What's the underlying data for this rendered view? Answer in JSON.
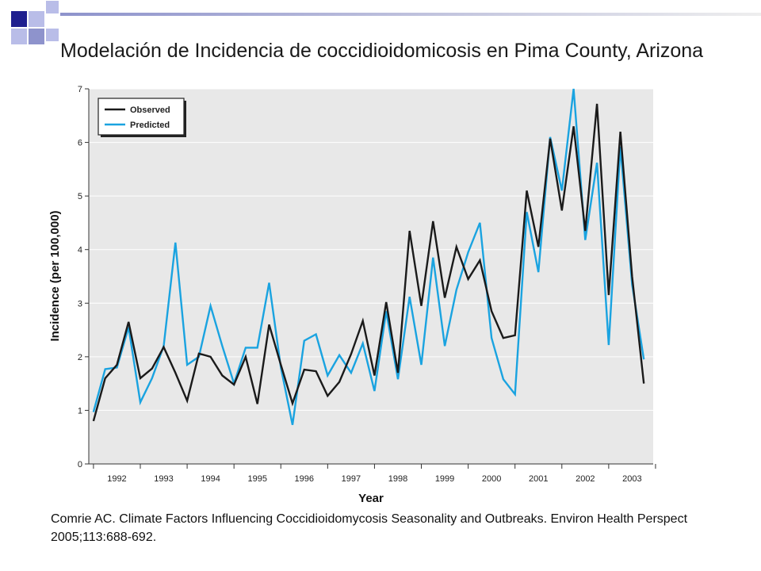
{
  "slide": {
    "title": "Modelación de Incidencia de coccidioidomicosis en Pima County, Arizona",
    "citation": "Comrie AC. Climate Factors Influencing Coccidioidomycosis Seasonality and Outbreaks. Environ Health Perspect 2005;113:688-692."
  },
  "colors": {
    "deco_navy": "#1f1f8f",
    "deco_light": "#b9bde8",
    "deco_mid": "#8e93cc",
    "plot_bg": "#e8e8e8",
    "observed": "#1a1a1a",
    "predicted": "#1aa3e0"
  },
  "chart_data": {
    "type": "line",
    "title": "",
    "xlabel": "Year",
    "ylabel": "Incidence (per 100,000)",
    "x_ticks": [
      "1992",
      "1993",
      "1994",
      "1995",
      "1996",
      "1997",
      "1998",
      "1999",
      "2000",
      "2001",
      "2002",
      "2003"
    ],
    "y_ticks": [
      "0",
      "1",
      "2",
      "3",
      "4",
      "5",
      "6",
      "7"
    ],
    "ylim": [
      0,
      7
    ],
    "xlim": [
      1991.4,
      2003.45
    ],
    "grid": "horizontal",
    "legend": "top-left",
    "x": [
      1991.5,
      1991.75,
      1992.0,
      1992.25,
      1992.5,
      1992.75,
      1993.0,
      1993.25,
      1993.5,
      1993.75,
      1994.0,
      1994.25,
      1994.5,
      1994.75,
      1995.0,
      1995.25,
      1995.5,
      1995.75,
      1996.0,
      1996.25,
      1996.5,
      1996.75,
      1997.0,
      1997.25,
      1997.5,
      1997.75,
      1998.0,
      1998.25,
      1998.5,
      1998.75,
      1999.0,
      1999.25,
      1999.5,
      1999.75,
      2000.0,
      2000.25,
      2000.5,
      2000.75,
      2001.0,
      2001.25,
      2001.5,
      2001.75,
      2002.0,
      2002.25,
      2002.5,
      2002.75,
      2003.0,
      2003.25
    ],
    "series": [
      {
        "name": "Observed",
        "values": [
          0.8,
          1.6,
          1.85,
          2.65,
          1.6,
          1.78,
          2.18,
          1.7,
          1.18,
          2.06,
          2.0,
          1.65,
          1.48,
          2.0,
          1.12,
          2.6,
          1.85,
          1.13,
          1.76,
          1.73,
          1.27,
          1.53,
          2.05,
          2.67,
          1.65,
          3.02,
          1.7,
          4.35,
          2.95,
          4.53,
          3.1,
          4.05,
          3.45,
          3.8,
          2.85,
          2.35,
          2.4,
          5.1,
          4.05,
          6.07,
          4.73,
          6.3,
          4.35,
          6.72,
          3.15,
          6.2,
          3.5,
          1.5
        ]
      },
      {
        "name": "Predicted",
        "values": [
          0.97,
          1.77,
          1.8,
          2.55,
          1.15,
          1.6,
          2.2,
          4.13,
          1.85,
          2.0,
          2.95,
          2.2,
          1.5,
          2.17,
          2.17,
          3.38,
          1.8,
          0.73,
          2.3,
          2.42,
          1.65,
          2.03,
          1.7,
          2.25,
          1.36,
          2.85,
          1.58,
          3.12,
          1.85,
          3.85,
          2.2,
          3.25,
          3.95,
          4.5,
          2.35,
          1.58,
          1.3,
          4.7,
          3.58,
          6.1,
          5.1,
          7.0,
          4.18,
          5.62,
          2.22,
          5.92,
          3.35,
          1.95
        ]
      }
    ]
  }
}
